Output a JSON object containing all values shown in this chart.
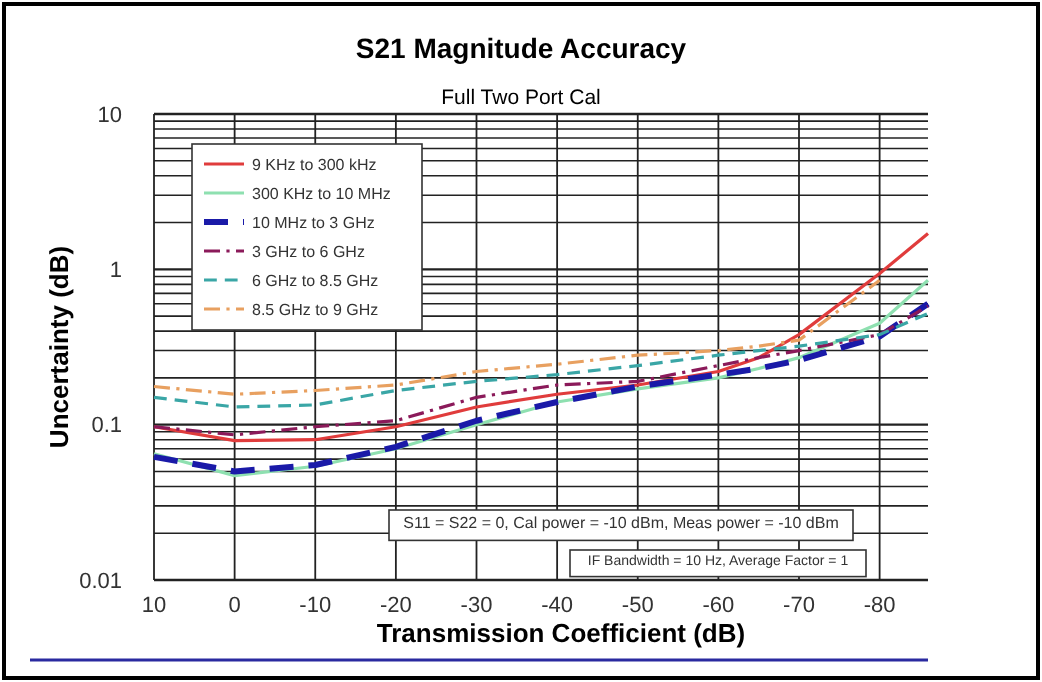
{
  "chart_data": {
    "type": "line",
    "title": "S21 Magnitude Accuracy",
    "subtitle": "Full Two Port Cal",
    "xlabel": "Transmission Coefficient (dB)",
    "ylabel": "Uncertainty (dB)",
    "x": [
      10,
      0,
      -10,
      -20,
      -30,
      -40,
      -50,
      -60,
      -65,
      -70,
      -80,
      -86
    ],
    "xlim": [
      10,
      -86
    ],
    "xticks": [
      10,
      0,
      -10,
      -20,
      -30,
      -40,
      -50,
      -60,
      -70,
      -80
    ],
    "ylim": [
      0.01,
      10
    ],
    "log": true,
    "grid": true,
    "legend": "top left",
    "yticks": [
      0.01,
      {
        "value": 0.02,
        "label": null
      },
      {
        "value": 0.03,
        "label": null
      },
      {
        "value": 0.04,
        "label": null
      },
      {
        "value": 0.05,
        "label": null
      },
      {
        "value": 0.06,
        "label": null
      },
      {
        "value": 0.07,
        "label": null
      },
      {
        "value": 0.08,
        "label": null
      },
      {
        "value": 0.09,
        "label": null
      },
      0.1,
      {
        "value": 0.2,
        "label": null
      },
      {
        "value": 0.3,
        "label": null
      },
      {
        "value": 0.4,
        "label": null
      },
      {
        "value": 0.5,
        "label": null
      },
      {
        "value": 0.6,
        "label": null
      },
      {
        "value": 0.7,
        "label": null
      },
      {
        "value": 0.8,
        "label": null
      },
      {
        "value": 0.9,
        "label": null
      },
      1,
      {
        "value": 2,
        "label": null
      },
      {
        "value": 3,
        "label": null
      },
      {
        "value": 4,
        "label": null
      },
      {
        "value": 5,
        "label": null
      },
      {
        "value": 6,
        "label": null
      },
      {
        "value": 7,
        "label": null
      },
      {
        "value": 8,
        "label": null
      },
      {
        "value": 9,
        "label": null
      },
      10
    ],
    "series": [
      {
        "name": "9 KHz to 300 kHz",
        "color": "#e03c3c",
        "line_style": "solid",
        "values": [
          0.097,
          0.079,
          0.08,
          0.097,
          0.13,
          0.157,
          0.18,
          0.22,
          0.27,
          0.38,
          0.94,
          1.7
        ]
      },
      {
        "name": "300 KHz to 10 MHz",
        "color": "#8ee0b0",
        "line_style": "solid",
        "values": [
          0.065,
          0.047,
          0.054,
          0.07,
          0.1,
          0.14,
          0.17,
          0.2,
          0.23,
          0.27,
          0.45,
          0.85
        ]
      },
      {
        "name": "10 MHz to 3 GHz",
        "color": "#1a1aa8",
        "line_style": "dashed",
        "values": [
          0.062,
          0.05,
          0.055,
          0.072,
          0.106,
          0.14,
          0.176,
          0.21,
          0.23,
          0.26,
          0.37,
          0.6
        ]
      },
      {
        "name": "3 GHz to 6 GHz",
        "color": "#8b1a5a",
        "line_style": "dashdot",
        "values": [
          0.097,
          0.086,
          0.097,
          0.106,
          0.15,
          0.18,
          0.19,
          0.24,
          0.27,
          0.3,
          0.38,
          0.58
        ]
      },
      {
        "name": "6 GHz to 8.5 GHz",
        "color": "#3aa6a6",
        "line_style": "dashed",
        "values": [
          0.15,
          0.13,
          0.134,
          0.166,
          0.19,
          0.21,
          0.24,
          0.28,
          0.3,
          0.32,
          0.38,
          0.52
        ]
      },
      {
        "name": "8.5 GHz to 9 GHz",
        "color": "#e8a060",
        "line_style": "dashdot",
        "values": [
          0.176,
          0.157,
          0.166,
          0.18,
          0.22,
          0.245,
          0.28,
          0.3,
          0.32,
          0.35,
          0.85,
          null
        ]
      }
    ],
    "annotations": [
      "S11 = S22 = 0, Cal power = -10 dBm, Meas power = -10 dBm",
      "IF Bandwidth = 10 Hz, Average Factor = 1"
    ]
  }
}
